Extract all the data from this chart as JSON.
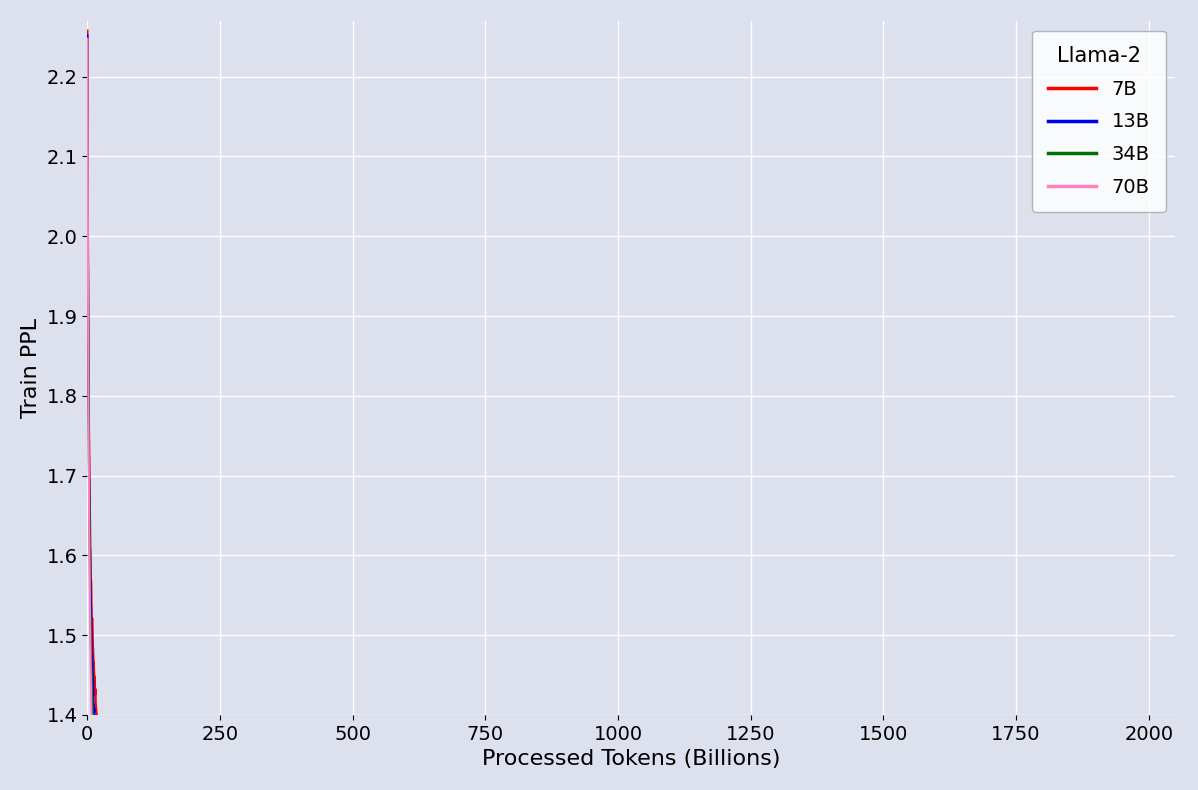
{
  "title": "",
  "xlabel": "Processed Tokens (Billions)",
  "ylabel": "Train PPL",
  "xlim": [
    0,
    2050
  ],
  "ylim": [
    1.4,
    2.27
  ],
  "yticks": [
    1.4,
    1.5,
    1.6,
    1.7,
    1.8,
    1.9,
    2.0,
    2.1,
    2.2
  ],
  "xticks": [
    0,
    250,
    500,
    750,
    1000,
    1250,
    1500,
    1750,
    2000
  ],
  "background_color": "#dde1ed",
  "fig_background_color": "#dde1ed",
  "legend_title": "Llama-2",
  "series": [
    {
      "label": "7B",
      "color": "#ff0000",
      "a": 1.12,
      "b": 0.52,
      "c": 8.0,
      "noise_scale": 0.008,
      "seed": 10
    },
    {
      "label": "13B",
      "color": "#0000ee",
      "a": 1.05,
      "b": 0.52,
      "c": 8.0,
      "noise_scale": 0.007,
      "seed": 20
    },
    {
      "label": "34B",
      "color": "#007000",
      "a": 0.97,
      "b": 0.52,
      "c": 8.5,
      "noise_scale": 0.009,
      "seed": 30
    },
    {
      "label": "70B",
      "color": "#ff80c0",
      "a": 0.895,
      "b": 0.52,
      "c": 9.0,
      "noise_scale": 0.01,
      "seed": 40
    }
  ],
  "line_width": 1.5,
  "font_size_label": 16,
  "font_size_tick": 14,
  "font_size_legend_title": 15,
  "font_size_legend": 14
}
